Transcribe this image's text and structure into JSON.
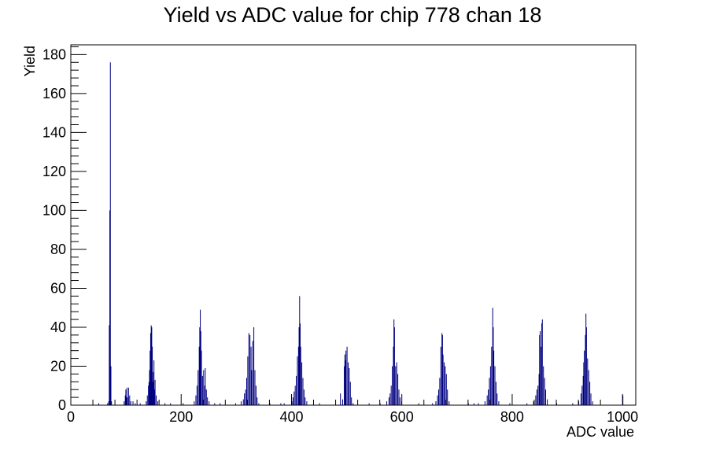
{
  "chart_data": {
    "type": "histogram",
    "title": "Yield vs ADC value for chip 778 chan 18",
    "xlabel": "ADC value",
    "ylabel": "Yield",
    "xlim": [
      0,
      1024
    ],
    "ylim": [
      0,
      185
    ],
    "xticks": [
      0,
      200,
      400,
      600,
      800,
      1000
    ],
    "yticks": [
      0,
      20,
      40,
      60,
      80,
      100,
      120,
      140,
      160,
      180
    ],
    "grid": false,
    "legend": "none",
    "line_color": "#000080",
    "bins": [
      [
        50,
        1
      ],
      [
        66,
        1
      ],
      [
        68,
        2
      ],
      [
        69,
        41
      ],
      [
        70,
        100
      ],
      [
        71,
        176
      ],
      [
        72,
        20
      ],
      [
        73,
        2
      ],
      [
        96,
        2
      ],
      [
        98,
        5
      ],
      [
        99,
        8
      ],
      [
        100,
        4
      ],
      [
        101,
        9
      ],
      [
        102,
        4
      ],
      [
        104,
        9
      ],
      [
        106,
        5
      ],
      [
        108,
        2
      ],
      [
        112,
        2
      ],
      [
        116,
        1
      ],
      [
        125,
        1
      ],
      [
        136,
        2
      ],
      [
        138,
        5
      ],
      [
        140,
        10
      ],
      [
        141,
        12
      ],
      [
        142,
        18
      ],
      [
        143,
        28
      ],
      [
        144,
        37
      ],
      [
        145,
        41
      ],
      [
        146,
        40
      ],
      [
        147,
        30
      ],
      [
        148,
        12
      ],
      [
        149,
        17
      ],
      [
        150,
        23
      ],
      [
        151,
        8
      ],
      [
        152,
        13
      ],
      [
        154,
        5
      ],
      [
        157,
        2
      ],
      [
        170,
        1
      ],
      [
        180,
        1
      ],
      [
        203,
        1
      ],
      [
        223,
        2
      ],
      [
        226,
        5
      ],
      [
        228,
        10
      ],
      [
        230,
        18
      ],
      [
        232,
        30
      ],
      [
        233,
        40
      ],
      [
        234,
        49
      ],
      [
        235,
        38
      ],
      [
        236,
        28
      ],
      [
        238,
        15
      ],
      [
        240,
        18
      ],
      [
        242,
        10
      ],
      [
        243,
        19
      ],
      [
        245,
        8
      ],
      [
        247,
        4
      ],
      [
        250,
        2
      ],
      [
        260,
        1
      ],
      [
        270,
        1
      ],
      [
        298,
        1
      ],
      [
        308,
        2
      ],
      [
        312,
        3
      ],
      [
        314,
        6
      ],
      [
        316,
        8
      ],
      [
        318,
        14
      ],
      [
        320,
        25
      ],
      [
        322,
        37
      ],
      [
        324,
        36
      ],
      [
        326,
        30
      ],
      [
        327,
        18
      ],
      [
        329,
        33
      ],
      [
        331,
        40
      ],
      [
        333,
        18
      ],
      [
        335,
        10
      ],
      [
        337,
        4
      ],
      [
        340,
        1
      ],
      [
        360,
        1
      ],
      [
        380,
        1
      ],
      [
        386,
        1
      ],
      [
        400,
        2
      ],
      [
        402,
        4
      ],
      [
        404,
        7
      ],
      [
        406,
        10
      ],
      [
        408,
        15
      ],
      [
        410,
        25
      ],
      [
        412,
        30
      ],
      [
        413,
        40
      ],
      [
        414,
        56
      ],
      [
        415,
        42
      ],
      [
        416,
        30
      ],
      [
        418,
        22
      ],
      [
        420,
        14
      ],
      [
        422,
        8
      ],
      [
        424,
        4
      ],
      [
        427,
        2
      ],
      [
        450,
        1
      ],
      [
        488,
        6
      ],
      [
        492,
        3
      ],
      [
        495,
        20
      ],
      [
        496,
        26
      ],
      [
        497,
        23
      ],
      [
        498,
        28
      ],
      [
        500,
        30
      ],
      [
        502,
        22
      ],
      [
        504,
        19
      ],
      [
        506,
        12
      ],
      [
        508,
        4
      ],
      [
        511,
        1
      ],
      [
        540,
        1
      ],
      [
        560,
        1
      ],
      [
        572,
        2
      ],
      [
        576,
        4
      ],
      [
        578,
        6
      ],
      [
        580,
        10
      ],
      [
        582,
        20
      ],
      [
        584,
        30
      ],
      [
        585,
        44
      ],
      [
        586,
        40
      ],
      [
        588,
        20
      ],
      [
        590,
        22
      ],
      [
        592,
        16
      ],
      [
        594,
        8
      ],
      [
        596,
        4
      ],
      [
        599,
        2
      ],
      [
        630,
        1
      ],
      [
        655,
        1
      ],
      [
        661,
        2
      ],
      [
        664,
        5
      ],
      [
        666,
        8
      ],
      [
        668,
        14
      ],
      [
        670,
        30
      ],
      [
        672,
        37
      ],
      [
        673,
        36
      ],
      [
        674,
        26
      ],
      [
        676,
        22
      ],
      [
        678,
        20
      ],
      [
        680,
        16
      ],
      [
        682,
        8
      ],
      [
        685,
        2
      ],
      [
        720,
        1
      ],
      [
        730,
        1
      ],
      [
        738,
        1
      ],
      [
        750,
        2
      ],
      [
        754,
        5
      ],
      [
        756,
        8
      ],
      [
        758,
        14
      ],
      [
        760,
        20
      ],
      [
        762,
        30
      ],
      [
        764,
        50
      ],
      [
        765,
        40
      ],
      [
        766,
        28
      ],
      [
        768,
        20
      ],
      [
        770,
        12
      ],
      [
        772,
        6
      ],
      [
        775,
        2
      ],
      [
        795,
        1
      ],
      [
        826,
        1
      ],
      [
        838,
        2
      ],
      [
        842,
        5
      ],
      [
        844,
        8
      ],
      [
        846,
        10
      ],
      [
        848,
        16
      ],
      [
        849,
        36
      ],
      [
        850,
        38
      ],
      [
        852,
        30
      ],
      [
        853,
        42
      ],
      [
        854,
        44
      ],
      [
        856,
        20
      ],
      [
        858,
        14
      ],
      [
        860,
        8
      ],
      [
        863,
        3
      ],
      [
        880,
        1
      ],
      [
        909,
        1
      ],
      [
        920,
        2
      ],
      [
        924,
        6
      ],
      [
        926,
        10
      ],
      [
        928,
        15
      ],
      [
        929,
        22
      ],
      [
        930,
        28
      ],
      [
        932,
        36
      ],
      [
        933,
        47
      ],
      [
        934,
        40
      ],
      [
        936,
        24
      ],
      [
        938,
        18
      ],
      [
        940,
        12
      ],
      [
        942,
        6
      ],
      [
        945,
        2
      ],
      [
        1000,
        5
      ]
    ]
  }
}
